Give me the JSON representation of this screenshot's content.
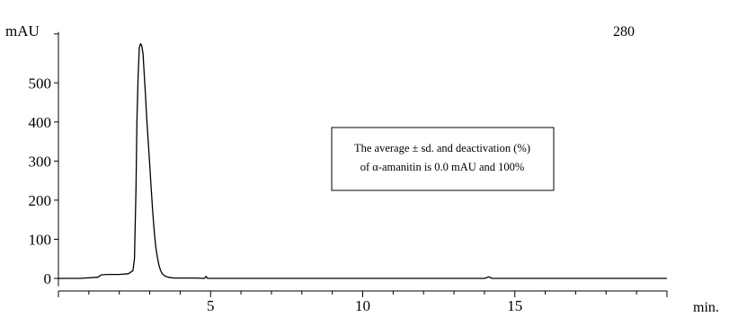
{
  "chart_data": {
    "type": "line",
    "ylabel": "mAU",
    "xlabel": "min.",
    "corner_label": "280",
    "xlim": [
      0,
      20
    ],
    "ylim": [
      -20,
      630
    ],
    "y_ticks": [
      0,
      100,
      200,
      300,
      400,
      500
    ],
    "x_ticks": [
      5,
      10,
      15
    ],
    "annotation": {
      "line1": "The average ± sd.  and  deactivation (%)",
      "line2": "of α-amanitin  is 0.0 mAU and 100%"
    },
    "series": [
      {
        "color": "#000000",
        "x": [
          0.0,
          0.7,
          1.3,
          1.4,
          1.6,
          2.0,
          2.3,
          2.45,
          2.5,
          2.55,
          2.58,
          2.62,
          2.66,
          2.7,
          2.74,
          2.78,
          2.82,
          2.86,
          2.9,
          2.95,
          3.0,
          3.05,
          3.1,
          3.15,
          3.2,
          3.25,
          3.3,
          3.35,
          3.4,
          3.5,
          3.6,
          3.8,
          4.0,
          4.5,
          4.8,
          4.85,
          4.9,
          5.2,
          6.0,
          8.0,
          10.0,
          12.0,
          14.0,
          14.15,
          14.25,
          14.4,
          16.0,
          18.0,
          20.0
        ],
        "y": [
          0,
          0,
          3,
          9,
          10,
          10,
          12,
          20,
          50,
          230,
          400,
          520,
          590,
          600,
          595,
          575,
          520,
          470,
          410,
          350,
          290,
          230,
          170,
          120,
          80,
          55,
          35,
          22,
          13,
          6,
          3,
          1,
          1,
          1,
          0,
          5,
          0,
          0,
          0,
          0,
          0,
          0,
          0,
          4,
          0,
          0,
          0,
          0,
          0
        ]
      }
    ]
  }
}
